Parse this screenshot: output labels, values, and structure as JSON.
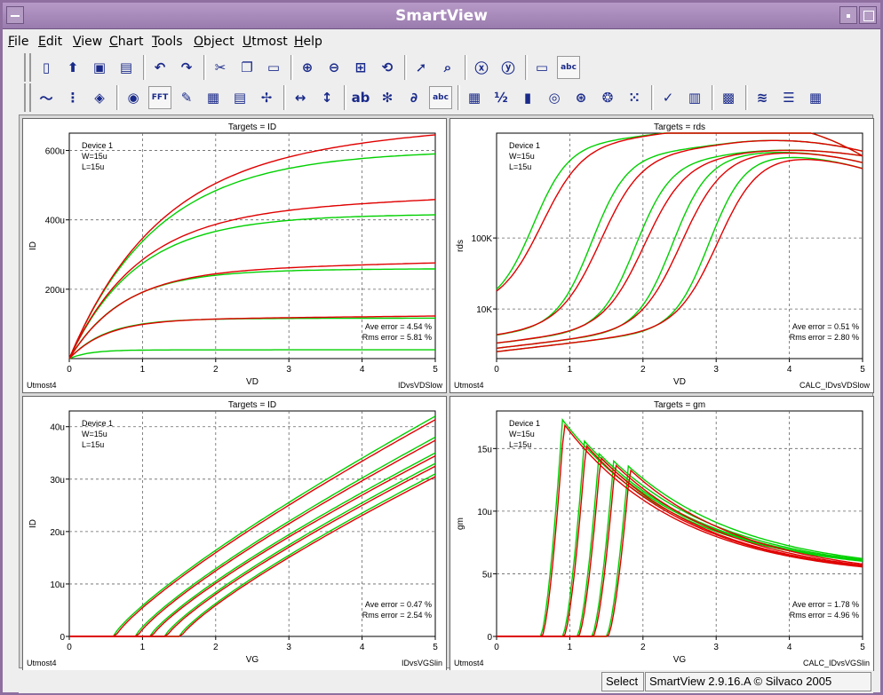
{
  "window": {
    "title": "SmartView"
  },
  "menu": [
    "File",
    "Edit",
    "View",
    "Chart",
    "Tools",
    "Object",
    "Utmost",
    "Help"
  ],
  "toolbar1": [
    {
      "icon": "new-icon",
      "glyph": "▯"
    },
    {
      "icon": "open-icon",
      "glyph": "⬆"
    },
    {
      "icon": "save-icon",
      "glyph": "▣"
    },
    {
      "icon": "print-icon",
      "glyph": "▤"
    },
    {
      "icon": "undo-icon",
      "glyph": "↶"
    },
    {
      "icon": "redo-icon",
      "glyph": "↷"
    },
    {
      "icon": "cut-icon",
      "glyph": "✂"
    },
    {
      "icon": "copy-icon",
      "glyph": "❐"
    },
    {
      "icon": "paste-icon",
      "glyph": "▭"
    },
    {
      "icon": "zoom-in-icon",
      "glyph": "⊕"
    },
    {
      "icon": "zoom-out-icon",
      "glyph": "⊖"
    },
    {
      "icon": "zoom-fit-icon",
      "glyph": "⊞"
    },
    {
      "icon": "zoom-reset-icon",
      "glyph": "⟲"
    },
    {
      "icon": "pointer-icon",
      "glyph": "➚"
    },
    {
      "icon": "zoom-box-icon",
      "glyph": "⌕"
    },
    {
      "icon": "zoom-x-icon",
      "glyph": "ⓧ"
    },
    {
      "icon": "zoom-y-icon",
      "glyph": "ⓨ"
    },
    {
      "icon": "rectangle-icon",
      "glyph": "▭"
    },
    {
      "icon": "text-abc-icon",
      "glyph": "abc"
    }
  ],
  "toolbar2": [
    {
      "icon": "line-chart-icon",
      "glyph": "〜"
    },
    {
      "icon": "data-list-icon",
      "glyph": "⋮"
    },
    {
      "icon": "palette-icon",
      "glyph": "◈"
    },
    {
      "icon": "camera-icon",
      "glyph": "◉"
    },
    {
      "icon": "fft-icon",
      "glyph": "FFT"
    },
    {
      "icon": "edit-chart-icon",
      "glyph": "✎"
    },
    {
      "icon": "calculator-icon",
      "glyph": "▦"
    },
    {
      "icon": "table-icon",
      "glyph": "▤"
    },
    {
      "icon": "heart-table-icon",
      "glyph": "✢"
    },
    {
      "icon": "ruler-x-icon",
      "glyph": "↔"
    },
    {
      "icon": "ruler-y-icon",
      "glyph": "↕"
    },
    {
      "icon": "label-ab-icon",
      "glyph": "ab"
    },
    {
      "icon": "scatter-label-icon",
      "glyph": "✻"
    },
    {
      "icon": "derivative-icon",
      "glyph": "∂"
    },
    {
      "icon": "text-abc2-icon",
      "glyph": "abc"
    },
    {
      "icon": "grid-red-icon",
      "glyph": "▦"
    },
    {
      "icon": "sweep-icon",
      "glyph": "½"
    },
    {
      "icon": "histogram-icon",
      "glyph": "▮"
    },
    {
      "icon": "target-icon",
      "glyph": "◎"
    },
    {
      "icon": "polar-icon",
      "glyph": "⊛"
    },
    {
      "icon": "polar-chart-icon",
      "glyph": "❂"
    },
    {
      "icon": "scatter-icon",
      "glyph": "⁙"
    },
    {
      "icon": "line-check-icon",
      "glyph": "✓"
    },
    {
      "icon": "bars-green-icon",
      "glyph": "▥"
    },
    {
      "icon": "density-icon",
      "glyph": "▩"
    },
    {
      "icon": "multi-line-icon",
      "glyph": "≋"
    },
    {
      "icon": "settings-bars-icon",
      "glyph": "☰"
    },
    {
      "icon": "layout-icon",
      "glyph": "▦"
    }
  ],
  "status": {
    "mode": "Select",
    "version": "SmartView 2.9.16.A © Silvaco 2005"
  },
  "colors": {
    "measured": "#e00000",
    "simulated": "#00d000",
    "grid": "#666666"
  },
  "chart_data": [
    {
      "type": "line",
      "title": "Targets = ID",
      "xlabel": "VD",
      "ylabel": "ID",
      "xlim": [
        0,
        5
      ],
      "ylim": [
        0,
        650
      ],
      "xticks": [
        "0",
        "1",
        "2",
        "3",
        "4",
        "5"
      ],
      "xtick_values": [
        0,
        1,
        2,
        3,
        4,
        5
      ],
      "yticks": [
        "200u",
        "400u",
        "600u"
      ],
      "ytick_values": [
        200,
        400,
        600
      ],
      "yscale": "linear",
      "grid": true,
      "device": [
        "Device 1",
        "W=15u",
        "L=15u"
      ],
      "errors": [
        "Ave error =  4.54 %",
        "Rms error =  5.81 %"
      ],
      "footer_left": "Utmost4",
      "footer_right": "IDvsVDSlow",
      "measured_sat": [
        640,
        450,
        270,
        120
      ],
      "simulated_sat": [
        590,
        410,
        255,
        115,
        25
      ],
      "vdsat": [
        2.6,
        2.0,
        1.6,
        1.1,
        0.6
      ]
    },
    {
      "type": "line",
      "title": "Targets = rds",
      "xlabel": "VD",
      "ylabel": "rds",
      "xlim": [
        0,
        5
      ],
      "ylim": [
        2000,
        3000000
      ],
      "xticks": [
        "0",
        "1",
        "2",
        "3",
        "4",
        "5"
      ],
      "xtick_values": [
        0,
        1,
        2,
        3,
        4,
        5
      ],
      "yticks": [
        "10K",
        "100K"
      ],
      "ytick_values": [
        10000,
        100000
      ],
      "yscale": "log",
      "grid": true,
      "device": [
        "Device 1",
        "W=15u",
        "L=15u"
      ],
      "errors": [
        "Ave error =  0.51 %",
        "Rms error =  2.80 %"
      ],
      "footer_left": "Utmost4",
      "footer_right": "CALC_IDvsVDSlow"
    },
    {
      "type": "line",
      "title": "Targets = ID",
      "xlabel": "VG",
      "ylabel": "ID",
      "xlim": [
        0,
        5
      ],
      "ylim": [
        0,
        43
      ],
      "xticks": [
        "0",
        "1",
        "2",
        "3",
        "4",
        "5"
      ],
      "xtick_values": [
        0,
        1,
        2,
        3,
        4,
        5
      ],
      "yticks": [
        "0",
        "10u",
        "20u",
        "30u",
        "40u"
      ],
      "ytick_values": [
        0,
        10,
        20,
        30,
        40
      ],
      "yscale": "linear",
      "grid": true,
      "device": [
        "Device 1",
        "W=15u",
        "L=15u"
      ],
      "errors": [
        "Ave error =  0.47 %",
        "Rms error =  2.54 %"
      ],
      "footer_left": "Utmost4",
      "footer_right": "IDvsVGSlin",
      "vth": [
        0.6,
        0.9,
        1.1,
        1.3,
        1.5
      ],
      "end_values": [
        42,
        38,
        35,
        33,
        31
      ]
    },
    {
      "type": "line",
      "title": "Targets = gm",
      "xlabel": "VG",
      "ylabel": "gm",
      "xlim": [
        0,
        5
      ],
      "ylim": [
        0,
        18
      ],
      "xticks": [
        "0",
        "1",
        "2",
        "3",
        "4",
        "5"
      ],
      "xtick_values": [
        0,
        1,
        2,
        3,
        4,
        5
      ],
      "yticks": [
        "0",
        "5u",
        "10u",
        "15u"
      ],
      "ytick_values": [
        0,
        5,
        10,
        15
      ],
      "yscale": "linear",
      "grid": true,
      "device": [
        "Device 1",
        "W=15u",
        "L=15u"
      ],
      "errors": [
        "Ave error =  1.78 %",
        "Rms error =  4.96 %"
      ],
      "footer_left": "Utmost4",
      "footer_right": "CALC_IDvsVGSlin",
      "vth": [
        0.6,
        0.9,
        1.1,
        1.3,
        1.5
      ],
      "peaks": [
        17.3,
        15.6,
        14.6,
        14.0,
        13.6
      ]
    }
  ]
}
